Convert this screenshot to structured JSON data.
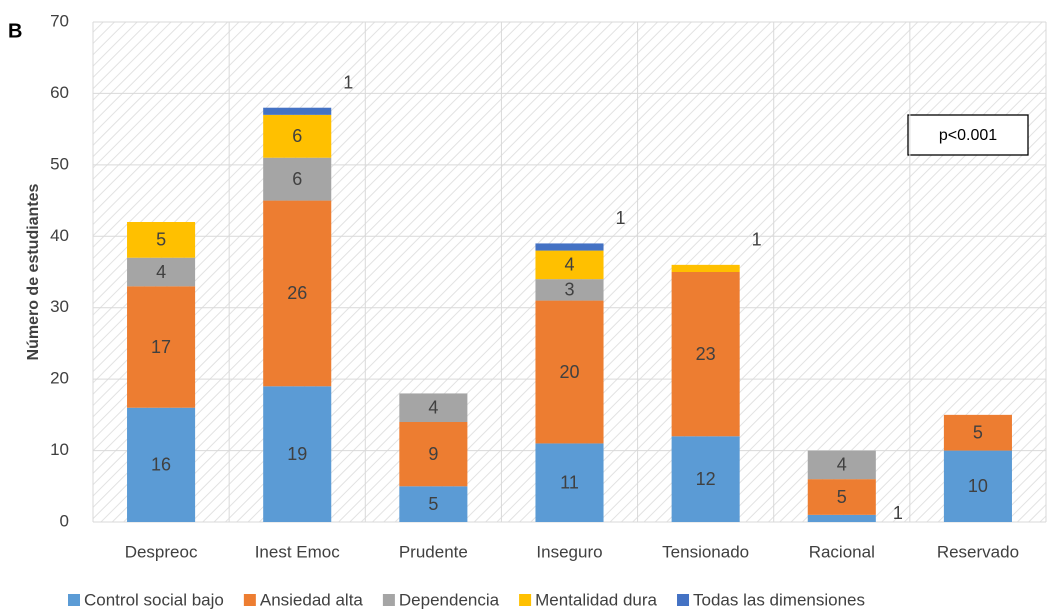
{
  "chart_data": {
    "type": "stacked_bar",
    "panel_label": "B",
    "ylabel": "Número de estudiantes",
    "annotation": "p<0.001",
    "categories": [
      "Despreoc",
      "Inest Emoc",
      "Prudente",
      "Inseguro",
      "Tensionado",
      "Racional",
      "Reservado"
    ],
    "series": [
      {
        "name": "Control social bajo",
        "color": "#5b9bd5",
        "values": [
          16,
          19,
          5,
          11,
          12,
          1,
          10
        ]
      },
      {
        "name": "Ansiedad alta",
        "color": "#ed7d31",
        "values": [
          17,
          26,
          9,
          20,
          23,
          5,
          5
        ]
      },
      {
        "name": "Dependencia",
        "color": "#a5a5a5",
        "values": [
          4,
          6,
          4,
          3,
          null,
          4,
          null
        ]
      },
      {
        "name": "Mentalidad dura",
        "color": "#ffc000",
        "values": [
          5,
          6,
          null,
          4,
          1,
          null,
          null
        ]
      },
      {
        "name": "Todas las dimensiones",
        "color": "#4472c4",
        "values": [
          null,
          1,
          null,
          1,
          null,
          null,
          null
        ]
      }
    ],
    "ylim": [
      0,
      70
    ],
    "yticks": [
      0,
      10,
      20,
      30,
      40,
      50,
      60,
      70
    ],
    "grid": true,
    "legend": "bottom"
  }
}
